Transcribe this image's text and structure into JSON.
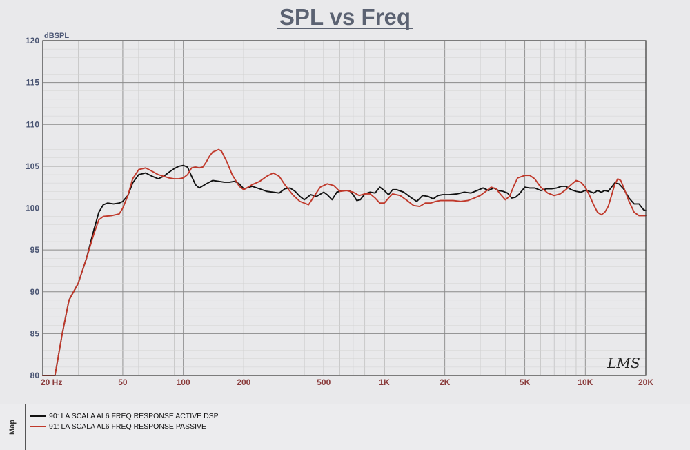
{
  "chart_data": {
    "type": "line",
    "title": "SPL vs Freq",
    "ylabel": "dBSPL",
    "xlabel": "",
    "x_scale": "log",
    "xlim": [
      20,
      20000
    ],
    "ylim": [
      80,
      120
    ],
    "y_ticks": [
      80,
      85,
      90,
      95,
      100,
      105,
      110,
      115,
      120
    ],
    "x_ticks": [
      {
        "value": 20,
        "label": "20  Hz"
      },
      {
        "value": 50,
        "label": "50"
      },
      {
        "value": 100,
        "label": "100"
      },
      {
        "value": 200,
        "label": "200"
      },
      {
        "value": 500,
        "label": "500"
      },
      {
        "value": 1000,
        "label": "1K"
      },
      {
        "value": 2000,
        "label": "2K"
      },
      {
        "value": 5000,
        "label": "5K"
      },
      {
        "value": 10000,
        "label": "10K"
      },
      {
        "value": 20000,
        "label": "20K"
      }
    ],
    "grid": true,
    "legend_position": "bottom-panel",
    "series": [
      {
        "name": "90: LA SCALA AL6 FREQ RESPONSE ACTIVE DSP",
        "color": "#111111",
        "points": [
          [
            20,
            80
          ],
          [
            23,
            80
          ],
          [
            25,
            85
          ],
          [
            27,
            89
          ],
          [
            30,
            91
          ],
          [
            33,
            94
          ],
          [
            36,
            97.5
          ],
          [
            38,
            99.5
          ],
          [
            40,
            100.4
          ],
          [
            42,
            100.6
          ],
          [
            45,
            100.5
          ],
          [
            48,
            100.6
          ],
          [
            50,
            100.8
          ],
          [
            53,
            101.5
          ],
          [
            56,
            103
          ],
          [
            60,
            104
          ],
          [
            65,
            104.2
          ],
          [
            70,
            103.8
          ],
          [
            75,
            103.5
          ],
          [
            80,
            103.8
          ],
          [
            85,
            104.3
          ],
          [
            90,
            104.7
          ],
          [
            95,
            105
          ],
          [
            100,
            105.1
          ],
          [
            105,
            104.9
          ],
          [
            110,
            103.8
          ],
          [
            115,
            102.8
          ],
          [
            120,
            102.4
          ],
          [
            130,
            102.9
          ],
          [
            140,
            103.3
          ],
          [
            150,
            103.2
          ],
          [
            160,
            103.1
          ],
          [
            170,
            103.1
          ],
          [
            180,
            103.2
          ],
          [
            190,
            102.9
          ],
          [
            200,
            102.3
          ],
          [
            220,
            102.6
          ],
          [
            240,
            102.3
          ],
          [
            260,
            102
          ],
          [
            280,
            101.9
          ],
          [
            300,
            101.8
          ],
          [
            320,
            102.3
          ],
          [
            340,
            102.4
          ],
          [
            360,
            102
          ],
          [
            380,
            101.4
          ],
          [
            400,
            101
          ],
          [
            430,
            101.6
          ],
          [
            460,
            101.4
          ],
          [
            500,
            101.9
          ],
          [
            520,
            101.6
          ],
          [
            550,
            101
          ],
          [
            580,
            101.9
          ],
          [
            620,
            102.1
          ],
          [
            670,
            102.1
          ],
          [
            700,
            101.6
          ],
          [
            730,
            100.9
          ],
          [
            760,
            101
          ],
          [
            800,
            101.7
          ],
          [
            850,
            101.9
          ],
          [
            900,
            101.8
          ],
          [
            950,
            102.5
          ],
          [
            1000,
            102.1
          ],
          [
            1050,
            101.6
          ],
          [
            1100,
            102.2
          ],
          [
            1150,
            102.2
          ],
          [
            1250,
            101.9
          ],
          [
            1350,
            101.3
          ],
          [
            1450,
            100.8
          ],
          [
            1550,
            101.5
          ],
          [
            1650,
            101.4
          ],
          [
            1750,
            101.1
          ],
          [
            1850,
            101.5
          ],
          [
            1950,
            101.6
          ],
          [
            2100,
            101.6
          ],
          [
            2300,
            101.7
          ],
          [
            2500,
            101.9
          ],
          [
            2700,
            101.8
          ],
          [
            2900,
            102.1
          ],
          [
            3100,
            102.4
          ],
          [
            3300,
            102.1
          ],
          [
            3500,
            102.4
          ],
          [
            3700,
            102.1
          ],
          [
            3900,
            102
          ],
          [
            4100,
            101.8
          ],
          [
            4300,
            101.2
          ],
          [
            4500,
            101.3
          ],
          [
            4700,
            101.7
          ],
          [
            5000,
            102.5
          ],
          [
            5300,
            102.4
          ],
          [
            5600,
            102.4
          ],
          [
            6000,
            102.1
          ],
          [
            6400,
            102.3
          ],
          [
            6800,
            102.3
          ],
          [
            7200,
            102.4
          ],
          [
            7600,
            102.6
          ],
          [
            8000,
            102.6
          ],
          [
            8500,
            102.2
          ],
          [
            9000,
            102
          ],
          [
            9500,
            101.9
          ],
          [
            10000,
            102.1
          ],
          [
            10500,
            102
          ],
          [
            11000,
            101.8
          ],
          [
            11500,
            102.1
          ],
          [
            12000,
            101.9
          ],
          [
            12500,
            102.1
          ],
          [
            13000,
            102
          ],
          [
            13500,
            102.5
          ],
          [
            14000,
            103
          ],
          [
            14700,
            102.9
          ],
          [
            15500,
            102.3
          ],
          [
            16500,
            101.2
          ],
          [
            17500,
            100.5
          ],
          [
            18500,
            100.5
          ],
          [
            19500,
            99.8
          ],
          [
            20000,
            99.7
          ]
        ]
      },
      {
        "name": "91: LA SCALA AL6 FREQ RESPONSE PASSIVE",
        "color": "#c0392b",
        "points": [
          [
            20,
            80
          ],
          [
            23,
            80
          ],
          [
            25,
            85
          ],
          [
            27,
            89
          ],
          [
            30,
            91
          ],
          [
            33,
            94
          ],
          [
            36,
            97
          ],
          [
            38,
            98.6
          ],
          [
            40,
            99
          ],
          [
            44,
            99.1
          ],
          [
            48,
            99.3
          ],
          [
            50,
            100
          ],
          [
            53,
            101.5
          ],
          [
            56,
            103.5
          ],
          [
            60,
            104.6
          ],
          [
            65,
            104.8
          ],
          [
            70,
            104.4
          ],
          [
            75,
            104
          ],
          [
            80,
            103.8
          ],
          [
            85,
            103.6
          ],
          [
            90,
            103.5
          ],
          [
            95,
            103.5
          ],
          [
            100,
            103.6
          ],
          [
            105,
            104
          ],
          [
            110,
            104.8
          ],
          [
            115,
            104.9
          ],
          [
            120,
            104.8
          ],
          [
            125,
            104.9
          ],
          [
            130,
            105.5
          ],
          [
            135,
            106.2
          ],
          [
            140,
            106.7
          ],
          [
            150,
            107
          ],
          [
            155,
            106.8
          ],
          [
            165,
            105.5
          ],
          [
            175,
            104
          ],
          [
            190,
            102.6
          ],
          [
            200,
            102.2
          ],
          [
            210,
            102.5
          ],
          [
            220,
            102.8
          ],
          [
            240,
            103.2
          ],
          [
            260,
            103.8
          ],
          [
            280,
            104.2
          ],
          [
            300,
            103.8
          ],
          [
            320,
            102.8
          ],
          [
            350,
            101.6
          ],
          [
            380,
            100.8
          ],
          [
            420,
            100.4
          ],
          [
            450,
            101.5
          ],
          [
            480,
            102.5
          ],
          [
            520,
            102.9
          ],
          [
            560,
            102.7
          ],
          [
            600,
            102
          ],
          [
            650,
            102.1
          ],
          [
            700,
            101.9
          ],
          [
            750,
            101.5
          ],
          [
            800,
            101.7
          ],
          [
            850,
            101.7
          ],
          [
            900,
            101.2
          ],
          [
            950,
            100.6
          ],
          [
            1000,
            100.6
          ],
          [
            1050,
            101.2
          ],
          [
            1100,
            101.7
          ],
          [
            1200,
            101.5
          ],
          [
            1300,
            100.9
          ],
          [
            1400,
            100.3
          ],
          [
            1500,
            100.2
          ],
          [
            1600,
            100.6
          ],
          [
            1700,
            100.6
          ],
          [
            1800,
            100.8
          ],
          [
            1900,
            100.9
          ],
          [
            2000,
            100.9
          ],
          [
            2200,
            100.9
          ],
          [
            2400,
            100.8
          ],
          [
            2600,
            100.9
          ],
          [
            2800,
            101.2
          ],
          [
            3000,
            101.5
          ],
          [
            3200,
            102
          ],
          [
            3400,
            102.5
          ],
          [
            3600,
            102.3
          ],
          [
            3800,
            101.6
          ],
          [
            4000,
            101
          ],
          [
            4200,
            101.4
          ],
          [
            4400,
            102.6
          ],
          [
            4600,
            103.6
          ],
          [
            5000,
            103.9
          ],
          [
            5300,
            103.9
          ],
          [
            5600,
            103.5
          ],
          [
            6000,
            102.5
          ],
          [
            6500,
            101.8
          ],
          [
            7000,
            101.5
          ],
          [
            7500,
            101.7
          ],
          [
            8000,
            102.2
          ],
          [
            8500,
            102.8
          ],
          [
            9000,
            103.3
          ],
          [
            9500,
            103.1
          ],
          [
            10000,
            102.5
          ],
          [
            10500,
            101.5
          ],
          [
            11000,
            100.4
          ],
          [
            11500,
            99.5
          ],
          [
            12000,
            99.2
          ],
          [
            12500,
            99.5
          ],
          [
            13000,
            100.2
          ],
          [
            13500,
            101.5
          ],
          [
            14000,
            102.8
          ],
          [
            14500,
            103.5
          ],
          [
            15000,
            103.3
          ],
          [
            15500,
            102.5
          ],
          [
            16500,
            100.8
          ],
          [
            17500,
            99.5
          ],
          [
            18500,
            99.1
          ],
          [
            20000,
            99.1
          ]
        ]
      }
    ]
  },
  "watermark": "LMS",
  "legend_tab_label": "Map"
}
